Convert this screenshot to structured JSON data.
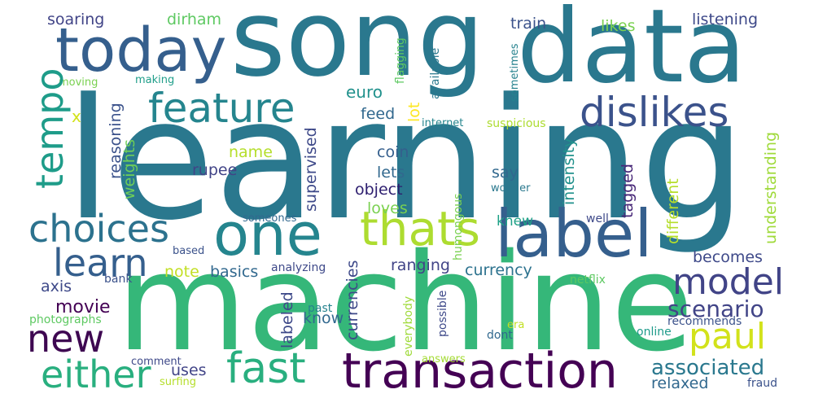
{
  "word_cloud": {
    "words": [
      {
        "text": "learning",
        "color": "#2a788e"
      },
      {
        "text": "machine",
        "color": "#35b779"
      },
      {
        "text": "song",
        "color": "#2a788e"
      },
      {
        "text": "data",
        "color": "#2a788e"
      },
      {
        "text": "today",
        "color": "#355f8d"
      },
      {
        "text": "feature",
        "color": "#25858e"
      },
      {
        "text": "label",
        "color": "#355f8d"
      },
      {
        "text": "transaction",
        "color": "#440154"
      },
      {
        "text": "one",
        "color": "#25858e"
      },
      {
        "text": "thats",
        "color": "#addc30"
      },
      {
        "text": "choices",
        "color": "#2c728e"
      },
      {
        "text": "learn",
        "color": "#355f8d"
      },
      {
        "text": "dislikes",
        "color": "#3b528b"
      },
      {
        "text": "tempo",
        "color": "#1e9c89"
      },
      {
        "text": "fast",
        "color": "#29af7f"
      },
      {
        "text": "either",
        "color": "#29af7f"
      },
      {
        "text": "model",
        "color": "#414487"
      },
      {
        "text": "paul",
        "color": "#d2e21b"
      },
      {
        "text": "new",
        "color": "#3e0751"
      },
      {
        "text": "scenario",
        "color": "#414487"
      },
      {
        "text": "associated",
        "color": "#2a788e"
      },
      {
        "text": "movie",
        "color": "#440154"
      },
      {
        "text": "soaring",
        "color": "#414487"
      },
      {
        "text": "dirham",
        "color": "#5ec962"
      },
      {
        "text": "train",
        "color": "#3b528b"
      },
      {
        "text": "listening",
        "color": "#3e4989"
      },
      {
        "text": "likes",
        "color": "#7ad151"
      },
      {
        "text": "flagging",
        "color": "#5ec962"
      },
      {
        "text": "available",
        "color": "#2a788e"
      },
      {
        "text": "sometimes",
        "color": "#26828e"
      },
      {
        "text": "moving",
        "color": "#7ad151"
      },
      {
        "text": "making",
        "color": "#1f9e89"
      },
      {
        "text": "reasoning",
        "color": "#3b528b"
      },
      {
        "text": "euro",
        "color": "#21918c"
      },
      {
        "text": "feed",
        "color": "#31688e"
      },
      {
        "text": "lot",
        "color": "#fde725"
      },
      {
        "text": "internet",
        "color": "#25858e"
      },
      {
        "text": "suspicious",
        "color": "#addc30"
      },
      {
        "text": "intensity",
        "color": "#21918c"
      },
      {
        "text": "weights",
        "color": "#6ece58"
      },
      {
        "text": "name",
        "color": "#b5de2b"
      },
      {
        "text": "coin",
        "color": "#355f8d"
      },
      {
        "text": "supervised",
        "color": "#3e4989"
      },
      {
        "text": "lets",
        "color": "#31688e"
      },
      {
        "text": "say",
        "color": "#31688e"
      },
      {
        "text": "tagged",
        "color": "#482878"
      },
      {
        "text": "different",
        "color": "#b5de2b"
      },
      {
        "text": "understanding",
        "color": "#9fda3a"
      },
      {
        "text": "rupee",
        "color": "#414487"
      },
      {
        "text": "object",
        "color": "#2d1e6f"
      },
      {
        "text": "wonder",
        "color": "#2a788e"
      },
      {
        "text": "loves",
        "color": "#7ad151"
      },
      {
        "text": "knew",
        "color": "#1fa187"
      },
      {
        "text": "someones",
        "color": "#31688e"
      },
      {
        "text": "humongous",
        "color": "#7ad151"
      },
      {
        "text": "well",
        "color": "#3e4989"
      },
      {
        "text": "based",
        "color": "#3b528b"
      },
      {
        "text": "note",
        "color": "#c2df23"
      },
      {
        "text": "basics",
        "color": "#31688e"
      },
      {
        "text": "analyzing",
        "color": "#3e4989"
      },
      {
        "text": "currency",
        "color": "#2c728e"
      },
      {
        "text": "ranging",
        "color": "#414487"
      },
      {
        "text": "becomes",
        "color": "#3e4989"
      },
      {
        "text": "currencies",
        "color": "#3e4989"
      },
      {
        "text": "axis",
        "color": "#3e4989"
      },
      {
        "text": "bank",
        "color": "#3b528b"
      },
      {
        "text": "netflix",
        "color": "#5ec962"
      },
      {
        "text": "photographs",
        "color": "#5ec962"
      },
      {
        "text": "labeled",
        "color": "#3e4989"
      },
      {
        "text": "know",
        "color": "#31688e"
      },
      {
        "text": "past",
        "color": "#26828e"
      },
      {
        "text": "possible",
        "color": "#3e4989"
      },
      {
        "text": "everybody",
        "color": "#9fda3a"
      },
      {
        "text": "era",
        "color": "#c2df23"
      },
      {
        "text": "dont",
        "color": "#31688e"
      },
      {
        "text": "online",
        "color": "#1e9b8a"
      },
      {
        "text": "recommends",
        "color": "#3b528b"
      },
      {
        "text": "comment",
        "color": "#3e4989"
      },
      {
        "text": "uses",
        "color": "#414487"
      },
      {
        "text": "surfing",
        "color": "#b5de2b"
      },
      {
        "text": "answers",
        "color": "#a5db36"
      },
      {
        "text": "relaxed",
        "color": "#31688e"
      },
      {
        "text": "fraud",
        "color": "#3b528b"
      },
      {
        "text": "x",
        "color": "#d2e21b"
      }
    ]
  }
}
